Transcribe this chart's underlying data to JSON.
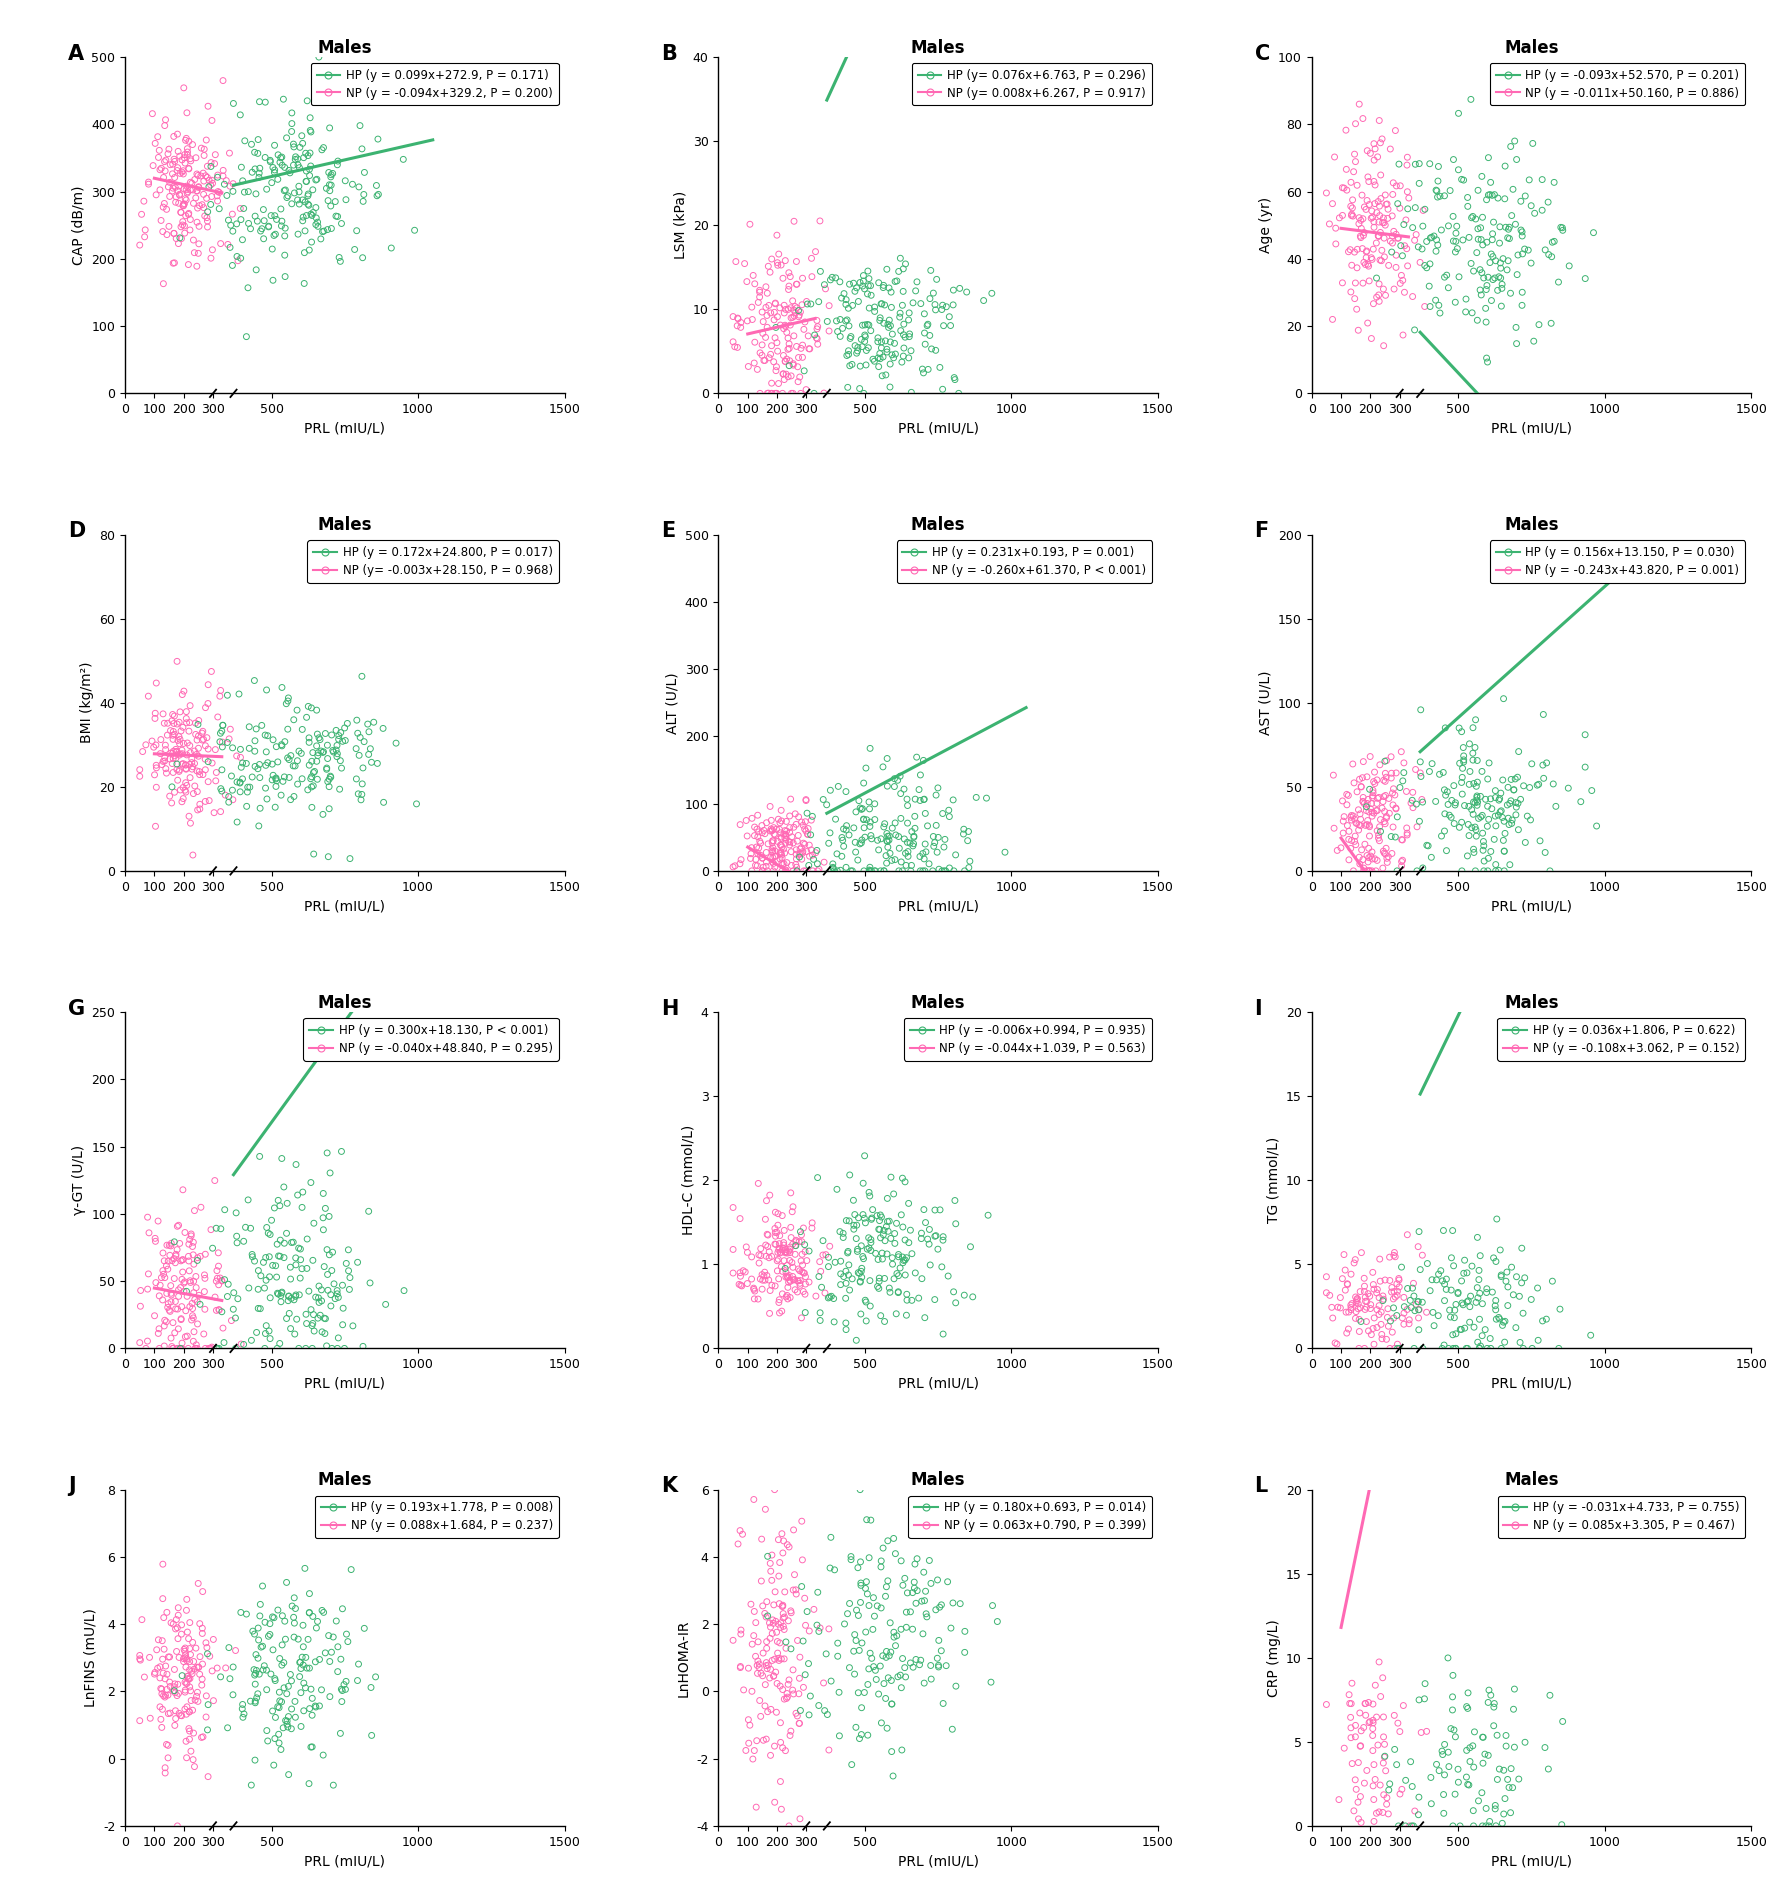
{
  "panels": [
    {
      "label": "A",
      "title": "Males",
      "ylabel": "CAP (dB/m)",
      "xlabel": "PRL (mIU/L)",
      "ylim": [
        0,
        500
      ],
      "yticks": [
        0,
        100,
        200,
        300,
        400,
        500
      ],
      "xlim": [
        0,
        1500
      ],
      "hp_eq": "HP (y = 0.099x+272.9, P = 0.171)",
      "np_eq": "NP (y = -0.094x+329.2, P = 0.200)",
      "hp_slope": 0.099,
      "hp_intercept": 272.9,
      "np_slope": -0.094,
      "np_intercept": 329.2,
      "hp_xrange": [
        370,
        1050
      ],
      "np_xrange": [
        100,
        330
      ],
      "hp_scatter_x_mean": 580,
      "hp_scatter_x_std": 150,
      "np_scatter_x_mean": 210,
      "np_scatter_x_std": 70,
      "hp_scatter_y_mean": 295,
      "hp_scatter_y_std": 65,
      "np_scatter_y_mean": 305,
      "np_scatter_y_std": 55,
      "hp_n": 200,
      "np_n": 180
    },
    {
      "label": "B",
      "title": "Males",
      "ylabel": "LSM (kPa)",
      "xlabel": "PRL (mIU/L)",
      "ylim": [
        0,
        40
      ],
      "yticks": [
        0,
        10,
        20,
        30,
        40
      ],
      "xlim": [
        0,
        1500
      ],
      "hp_eq": "HP (y= 0.076x+6.763, P = 0.296)",
      "np_eq": "NP (y= 0.008x+6.267, P = 0.917)",
      "hp_slope": 0.076,
      "hp_intercept": 6.763,
      "np_slope": 0.008,
      "np_intercept": 6.267,
      "hp_xrange": [
        370,
        1000
      ],
      "np_xrange": [
        100,
        330
      ],
      "hp_scatter_x_mean": 560,
      "hp_scatter_x_std": 140,
      "np_scatter_x_mean": 210,
      "np_scatter_x_std": 70,
      "hp_scatter_y_mean": 8,
      "hp_scatter_y_std": 4,
      "np_scatter_y_mean": 8,
      "np_scatter_y_std": 5,
      "hp_n": 180,
      "np_n": 160
    },
    {
      "label": "C",
      "title": "Males",
      "ylabel": "Age (yr)",
      "xlabel": "PRL (mIU/L)",
      "ylim": [
        0,
        100
      ],
      "yticks": [
        0,
        20,
        40,
        60,
        80,
        100
      ],
      "xlim": [
        0,
        1500
      ],
      "hp_eq": "HP (y = -0.093x+52.570, P = 0.201)",
      "np_eq": "NP (y = -0.011x+50.160, P = 0.886)",
      "hp_slope": -0.093,
      "hp_intercept": 52.57,
      "np_slope": -0.011,
      "np_intercept": 50.16,
      "hp_xrange": [
        370,
        1050
      ],
      "np_xrange": [
        100,
        330
      ],
      "hp_scatter_x_mean": 580,
      "hp_scatter_x_std": 150,
      "np_scatter_x_mean": 210,
      "np_scatter_x_std": 70,
      "hp_scatter_y_mean": 45,
      "hp_scatter_y_std": 15,
      "np_scatter_y_mean": 48,
      "np_scatter_y_std": 15,
      "hp_n": 180,
      "np_n": 160
    },
    {
      "label": "D",
      "title": "Males",
      "ylabel": "BMI (kg/m²)",
      "xlabel": "PRL (mIU/L)",
      "ylim": [
        0,
        80
      ],
      "yticks": [
        0,
        20,
        40,
        60,
        80
      ],
      "xlim": [
        0,
        1500
      ],
      "hp_eq": "HP (y = 0.172x+24.800, P = 0.017)",
      "np_eq": "NP (y= -0.003x+28.150, P = 0.968)",
      "hp_slope": 0.172,
      "hp_intercept": 24.8,
      "np_slope": -0.003,
      "np_intercept": 28.15,
      "hp_xrange": [
        370,
        1050
      ],
      "np_xrange": [
        100,
        330
      ],
      "hp_scatter_x_mean": 580,
      "hp_scatter_x_std": 150,
      "np_scatter_x_mean": 210,
      "np_scatter_x_std": 70,
      "hp_scatter_y_mean": 27,
      "hp_scatter_y_std": 8,
      "np_scatter_y_mean": 28,
      "np_scatter_y_std": 8,
      "hp_n": 180,
      "np_n": 160
    },
    {
      "label": "E",
      "title": "Males",
      "ylabel": "ALT (U/L)",
      "xlabel": "PRL (mIU/L)",
      "ylim": [
        0,
        500
      ],
      "yticks": [
        0,
        100,
        200,
        300,
        400,
        500
      ],
      "xlim": [
        0,
        1500
      ],
      "hp_eq": "HP (y = 0.231x+0.193, P = 0.001)",
      "np_eq": "NP (y = -0.260x+61.370, P < 0.001)",
      "hp_slope": 0.231,
      "hp_intercept": 0.193,
      "np_slope": -0.26,
      "np_intercept": 61.37,
      "hp_xrange": [
        370,
        1050
      ],
      "np_xrange": [
        100,
        330
      ],
      "hp_scatter_x_mean": 580,
      "hp_scatter_x_std": 150,
      "np_scatter_x_mean": 210,
      "np_scatter_x_std": 70,
      "hp_scatter_y_mean": 55,
      "hp_scatter_y_std": 45,
      "np_scatter_y_mean": 38,
      "np_scatter_y_std": 28,
      "hp_n": 180,
      "np_n": 160
    },
    {
      "label": "F",
      "title": "Males",
      "ylabel": "AST (U/L)",
      "xlabel": "PRL (mIU/L)",
      "ylim": [
        0,
        200
      ],
      "yticks": [
        0,
        50,
        100,
        150,
        200
      ],
      "xlim": [
        0,
        1500
      ],
      "hp_eq": "HP (y = 0.156x+13.150, P = 0.030)",
      "np_eq": "NP (y = -0.243x+43.820, P = 0.001)",
      "hp_slope": 0.156,
      "hp_intercept": 13.15,
      "np_slope": -0.243,
      "np_intercept": 43.82,
      "hp_xrange": [
        370,
        1050
      ],
      "np_xrange": [
        100,
        330
      ],
      "hp_scatter_x_mean": 580,
      "hp_scatter_x_std": 150,
      "np_scatter_x_mean": 210,
      "np_scatter_x_std": 70,
      "hp_scatter_y_mean": 35,
      "hp_scatter_y_std": 25,
      "np_scatter_y_mean": 30,
      "np_scatter_y_std": 20,
      "hp_n": 180,
      "np_n": 160
    },
    {
      "label": "G",
      "title": "Males",
      "ylabel": "γ-GT (U/L)",
      "xlabel": "PRL (mIU/L)",
      "ylim": [
        0,
        250
      ],
      "yticks": [
        0,
        50,
        100,
        150,
        200,
        250
      ],
      "xlim": [
        0,
        1500
      ],
      "hp_eq": "HP (y = 0.300x+18.130, P < 0.001)",
      "np_eq": "NP (y = -0.040x+48.840, P = 0.295)",
      "hp_slope": 0.3,
      "hp_intercept": 18.13,
      "np_slope": -0.04,
      "np_intercept": 48.84,
      "hp_xrange": [
        370,
        1050
      ],
      "np_xrange": [
        100,
        330
      ],
      "hp_scatter_x_mean": 560,
      "hp_scatter_x_std": 140,
      "np_scatter_x_mean": 200,
      "np_scatter_x_std": 70,
      "hp_scatter_y_mean": 50,
      "hp_scatter_y_std": 40,
      "np_scatter_y_mean": 45,
      "np_scatter_y_std": 30,
      "hp_n": 180,
      "np_n": 160
    },
    {
      "label": "H",
      "title": "Males",
      "ylabel": "HDL-C (mmol/L)",
      "xlabel": "PRL (mIU/L)",
      "ylim": [
        0,
        4
      ],
      "yticks": [
        0,
        1,
        2,
        3,
        4
      ],
      "xlim": [
        0,
        1500
      ],
      "hp_eq": "HP (y = -0.006x+0.994, P = 0.935)",
      "np_eq": "NP (y = -0.044x+1.039, P = 0.563)",
      "hp_slope": -0.006,
      "hp_intercept": 0.994,
      "np_slope": -0.044,
      "np_intercept": 1.039,
      "hp_xrange": [
        370,
        1050
      ],
      "np_xrange": [
        100,
        330
      ],
      "hp_scatter_x_mean": 560,
      "hp_scatter_x_std": 140,
      "np_scatter_x_mean": 210,
      "np_scatter_x_std": 70,
      "hp_scatter_y_mean": 1.05,
      "hp_scatter_y_std": 0.4,
      "np_scatter_y_mean": 1.0,
      "np_scatter_y_std": 0.35,
      "hp_n": 180,
      "np_n": 160
    },
    {
      "label": "I",
      "title": "Males",
      "ylabel": "TG (mmol/L)",
      "xlabel": "PRL (mIU/L)",
      "ylim": [
        0,
        20
      ],
      "yticks": [
        0,
        5,
        10,
        15,
        20
      ],
      "xlim": [
        0,
        1500
      ],
      "hp_eq": "HP (y = 0.036x+1.806, P = 0.622)",
      "np_eq": "NP (y = -0.108x+3.062, P = 0.152)",
      "hp_slope": 0.036,
      "hp_intercept": 1.806,
      "np_slope": -0.108,
      "np_intercept": 3.062,
      "hp_xrange": [
        370,
        1050
      ],
      "np_xrange": [
        100,
        330
      ],
      "hp_scatter_x_mean": 560,
      "hp_scatter_x_std": 140,
      "np_scatter_x_mean": 210,
      "np_scatter_x_std": 70,
      "hp_scatter_y_mean": 2.5,
      "hp_scatter_y_std": 2.0,
      "np_scatter_y_mean": 2.8,
      "np_scatter_y_std": 1.8,
      "hp_n": 140,
      "np_n": 120
    },
    {
      "label": "J",
      "title": "Males",
      "ylabel": "LnFINS (mU/L)",
      "xlabel": "PRL (mIU/L)",
      "ylim": [
        -2,
        8
      ],
      "yticks": [
        -2,
        0,
        2,
        4,
        6,
        8
      ],
      "xlim": [
        0,
        1500
      ],
      "hp_eq": "HP (y = 0.193x+1.778, P = 0.008)",
      "np_eq": "NP (y = 0.088x+1.684, P = 0.237)",
      "hp_slope": 0.193,
      "hp_intercept": 1.778,
      "np_slope": 0.088,
      "np_intercept": 1.684,
      "hp_xrange": [
        370,
        1050
      ],
      "np_xrange": [
        100,
        330
      ],
      "hp_scatter_x_mean": 560,
      "hp_scatter_x_std": 140,
      "np_scatter_x_mean": 195,
      "np_scatter_x_std": 65,
      "hp_scatter_y_mean": 2.5,
      "hp_scatter_y_std": 1.2,
      "np_scatter_y_mean": 2.3,
      "np_scatter_y_std": 1.2,
      "hp_n": 170,
      "np_n": 160
    },
    {
      "label": "K",
      "title": "Males",
      "ylabel": "LnHOMA-IR",
      "xlabel": "PRL (mIU/L)",
      "ylim": [
        -4,
        6
      ],
      "yticks": [
        -4,
        -2,
        0,
        2,
        4,
        6
      ],
      "xlim": [
        0,
        1500
      ],
      "hp_eq": "HP (y = 0.180x+0.693, P = 0.014)",
      "np_eq": "NP (y = 0.063x+0.790, P = 0.399)",
      "hp_slope": 0.18,
      "hp_intercept": 0.693,
      "np_slope": 0.063,
      "np_intercept": 0.79,
      "hp_xrange": [
        370,
        1050
      ],
      "np_xrange": [
        100,
        330
      ],
      "hp_scatter_x_mean": 560,
      "hp_scatter_x_std": 140,
      "np_scatter_x_mean": 195,
      "np_scatter_x_std": 65,
      "hp_scatter_y_mean": 1.5,
      "hp_scatter_y_std": 1.5,
      "np_scatter_y_mean": 1.0,
      "np_scatter_y_std": 2.0,
      "hp_n": 170,
      "np_n": 160
    },
    {
      "label": "L",
      "title": "Males",
      "ylabel": "CRP (mg/L)",
      "xlabel": "PRL (mIU/L)",
      "ylim": [
        0,
        20
      ],
      "yticks": [
        0,
        5,
        10,
        15,
        20
      ],
      "xlim": [
        0,
        1500
      ],
      "hp_eq": "HP (y = -0.031x+4.733, P = 0.755)",
      "np_eq": "NP (y = 0.085x+3.305, P = 0.467)",
      "hp_slope": -0.031,
      "hp_intercept": 4.733,
      "np_slope": 0.085,
      "np_intercept": 3.305,
      "hp_xrange": [
        370,
        1050
      ],
      "np_xrange": [
        100,
        330
      ],
      "hp_scatter_x_mean": 560,
      "hp_scatter_x_std": 130,
      "np_scatter_x_mean": 210,
      "np_scatter_x_std": 65,
      "hp_scatter_y_mean": 4.0,
      "hp_scatter_y_std": 3.0,
      "np_scatter_y_mean": 4.2,
      "np_scatter_y_std": 2.8,
      "hp_n": 100,
      "np_n": 75
    }
  ],
  "hp_color": "#3CB371",
  "np_color": "#FF69B4",
  "background_color": "#FFFFFF",
  "title_fontsize": 12,
  "label_fontsize": 10,
  "tick_fontsize": 9,
  "legend_fontsize": 8.5,
  "panel_label_fontsize": 15
}
